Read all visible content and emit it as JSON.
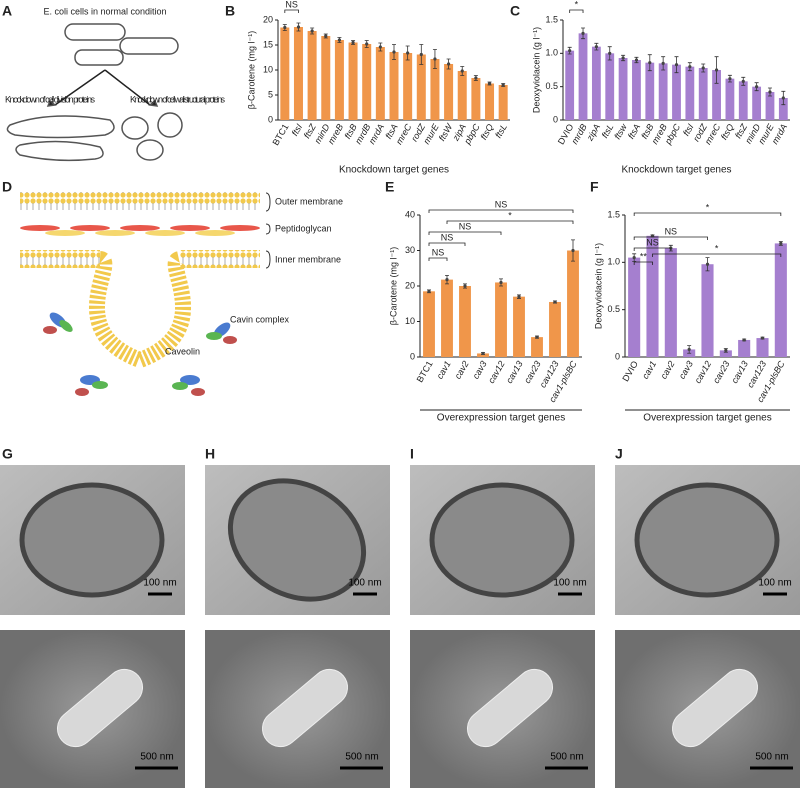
{
  "panel_labels": [
    "A",
    "B",
    "C",
    "D",
    "E",
    "F",
    "G",
    "H",
    "I",
    "J"
  ],
  "diagram_a": {
    "top": "E. coli cells in normal condition",
    "left": "Knockdown of cell division proteins",
    "right": "Knockdown of cell wall structural proteins"
  },
  "diagram_d": {
    "outer": "Outer membrane",
    "pg": "Peptidoglycan",
    "inner": "Inner membrane",
    "cavin": "Cavin complex",
    "caveolin": "Caveolin"
  },
  "micrographs": {
    "tem_scale": [
      "100 nm",
      "100 nm",
      "100 nm",
      "100 nm"
    ],
    "sem_scale": [
      "500 nm",
      "500 nm",
      "500 nm",
      "500 nm"
    ]
  },
  "chart_data": [
    {
      "type": "bar",
      "ylabel": "β-Carotene (mg l⁻¹)",
      "xlabel": "Knockdown target genes",
      "color": "#f0964a",
      "categories": [
        "BTC1",
        "ftsI",
        "ftsZ",
        "minD",
        "mreB",
        "ftsB",
        "mrdB",
        "mrdA",
        "ftsA",
        "mreC",
        "rodZ",
        "murE",
        "ftsW",
        "zipA",
        "pbpC",
        "ftsQ",
        "ftsL"
      ],
      "values": [
        18.5,
        18.6,
        17.8,
        16.8,
        16.0,
        15.5,
        15.2,
        14.6,
        13.6,
        13.4,
        13.1,
        12.2,
        11.2,
        9.8,
        8.4,
        7.3,
        7.0
      ],
      "errors": [
        0.6,
        0.8,
        0.6,
        0.4,
        0.5,
        0.4,
        0.7,
        0.8,
        1.5,
        1.4,
        2.0,
        1.9,
        1.0,
        0.9,
        0.5,
        0.3,
        0.3
      ],
      "ylim": [
        0,
        20
      ],
      "yticks": [
        0,
        5,
        10,
        15,
        20
      ],
      "annotations": [
        "NS"
      ]
    },
    {
      "type": "bar",
      "ylabel": "Deoxyviolacein (g l⁻¹)",
      "xlabel": "Knockdown target genes",
      "color": "#a57fcf",
      "categories": [
        "DVIO",
        "mrdB",
        "zipA",
        "ftsL",
        "ftsw",
        "ftsA",
        "ftsB",
        "mreB",
        "pbpC",
        "ftsI",
        "rodZ",
        "mreC",
        "ftsQ",
        "ftsZ",
        "minD",
        "murE",
        "mrdA"
      ],
      "values": [
        1.04,
        1.3,
        1.1,
        1.0,
        0.93,
        0.9,
        0.86,
        0.85,
        0.83,
        0.8,
        0.78,
        0.75,
        0.62,
        0.58,
        0.5,
        0.42,
        0.33
      ],
      "errors": [
        0.05,
        0.08,
        0.05,
        0.1,
        0.04,
        0.04,
        0.12,
        0.1,
        0.12,
        0.06,
        0.06,
        0.2,
        0.05,
        0.06,
        0.06,
        0.06,
        0.1
      ],
      "ylim": [
        0,
        1.5
      ],
      "yticks": [
        0,
        0.5,
        {
          "value": 1,
          "label": "1.0"
        },
        1.5
      ],
      "annotations": [
        "*"
      ]
    },
    {
      "type": "bar",
      "ylabel": "β-Carotene (mg l⁻¹)",
      "xlabel": "Overexpression target genes",
      "color": "#f0964a",
      "categories": [
        "BTC1",
        "cav1",
        "cav2",
        "cav3",
        "cav12",
        "cav13",
        "cav23",
        "cav123",
        "cav1-plsBC"
      ],
      "values": [
        18.5,
        21.8,
        20,
        1,
        21,
        17,
        5.6,
        15.5,
        30
      ],
      "errors": [
        0.4,
        1.2,
        0.6,
        0.3,
        1,
        0.5,
        0.3,
        0.3,
        3
      ],
      "ylim": [
        0,
        40
      ],
      "yticks": [
        0,
        10,
        20,
        30,
        40
      ],
      "annotations": [
        "NS",
        "NS",
        "NS",
        "NS",
        "*"
      ]
    },
    {
      "type": "bar",
      "ylabel": "Deoxyviolacein (g l⁻¹)",
      "xlabel": "Overexpression target genes",
      "color": "#a57fcf",
      "categories": [
        "DVIO",
        "cav1",
        "cav2",
        "cav3",
        "cav12",
        "cav23",
        "cav13",
        "cav123",
        "cav1-plsBC"
      ],
      "values": [
        1.05,
        1.28,
        1.15,
        0.08,
        0.98,
        0.07,
        0.18,
        0.2,
        1.2
      ],
      "errors": [
        0.04,
        0.01,
        0.03,
        0.04,
        0.07,
        0.02,
        0.01,
        0.01,
        0.02
      ],
      "ylim": [
        0,
        1.5
      ],
      "yticks": [
        0,
        0.5,
        {
          "value": 1,
          "label": "1.0"
        },
        1.5
      ],
      "annotations": [
        "**",
        "NS",
        "NS",
        "*",
        "*"
      ]
    }
  ]
}
